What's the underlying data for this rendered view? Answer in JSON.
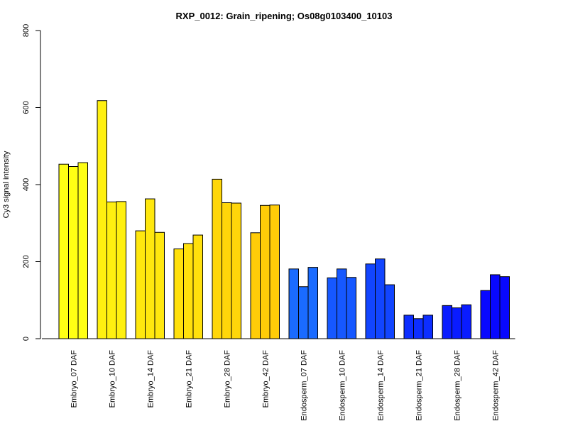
{
  "chart_data": {
    "type": "bar",
    "title": "RXP_0012: Grain_ripening; Os08g0103400_10103",
    "xlabel": "",
    "ylabel": "Cy3 signal intensity",
    "ylim": [
      0,
      800
    ],
    "yticks": [
      0,
      200,
      400,
      600,
      800
    ],
    "grid": false,
    "categories": [
      "Embryo_07 DAF",
      "Embryo_10 DAF",
      "Embryo_14 DAF",
      "Embryo_21 DAF",
      "Embryo_28 DAF",
      "Embryo_42 DAF",
      "Endosperm_07 DAF",
      "Endosperm_10 DAF",
      "Endosperm_14 DAF",
      "Endosperm_21 DAF",
      "Endosperm_28 DAF",
      "Endosperm_42 DAF"
    ],
    "group_colors": [
      "#ffff14",
      "#fff010",
      "#ffe80e",
      "#ffe00c",
      "#ffd60a",
      "#ffcc08",
      "#1a6bff",
      "#1658ff",
      "#1245ff",
      "#0d2eff",
      "#0a1cff",
      "#0808ff"
    ],
    "values": [
      [
        453,
        447,
        457
      ],
      [
        618,
        355,
        356
      ],
      [
        280,
        363,
        276
      ],
      [
        233,
        247,
        269
      ],
      [
        414,
        353,
        352
      ],
      [
        275,
        346,
        347
      ],
      [
        181,
        135,
        185
      ],
      [
        158,
        181,
        159
      ],
      [
        194,
        207,
        140
      ],
      [
        61,
        52,
        61
      ],
      [
        86,
        80,
        88
      ],
      [
        125,
        166,
        161
      ]
    ]
  }
}
